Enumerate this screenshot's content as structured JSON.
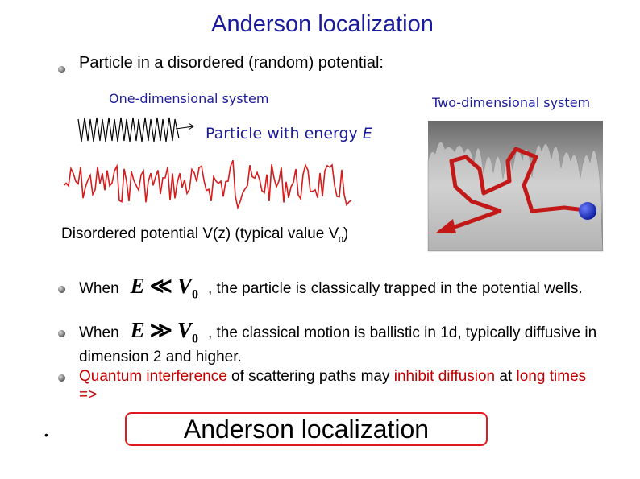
{
  "title": "Anderson localization",
  "intro": "Particle in a disordered (random) potential:",
  "figures": {
    "one_dim_label": "One-dimensional system",
    "two_dim_label": "Two-dimensional system",
    "particle_label": "Particle with energy",
    "particle_symbol": "E",
    "potential_label": "Disordered potential V(z) (typical value V",
    "potential_sub": "0",
    "potential_close": ")"
  },
  "bullets": [
    {
      "prefix": "When",
      "math": {
        "lhs": "E",
        "relation": "≪",
        "rhs": "V",
        "rhs_sub": "0"
      },
      "text": ", the particle is classically trapped in the potential wells."
    },
    {
      "prefix": "When",
      "math": {
        "lhs": "E",
        "relation": "≫",
        "rhs": "V",
        "rhs_sub": "0"
      },
      "text": ", the classical motion is ballistic in 1d, typically diffusive in dimension 2 and higher."
    },
    {
      "segments": [
        {
          "text": "Quantum interference",
          "highlight": true
        },
        {
          "text": "of scattering paths may",
          "highlight": false
        },
        {
          "text": "inhibit diffusion",
          "highlight": true
        },
        {
          "text": "at",
          "highlight": false
        },
        {
          "text": "long times =>",
          "highlight": true
        }
      ]
    }
  ],
  "conclusion": "Anderson localization"
}
